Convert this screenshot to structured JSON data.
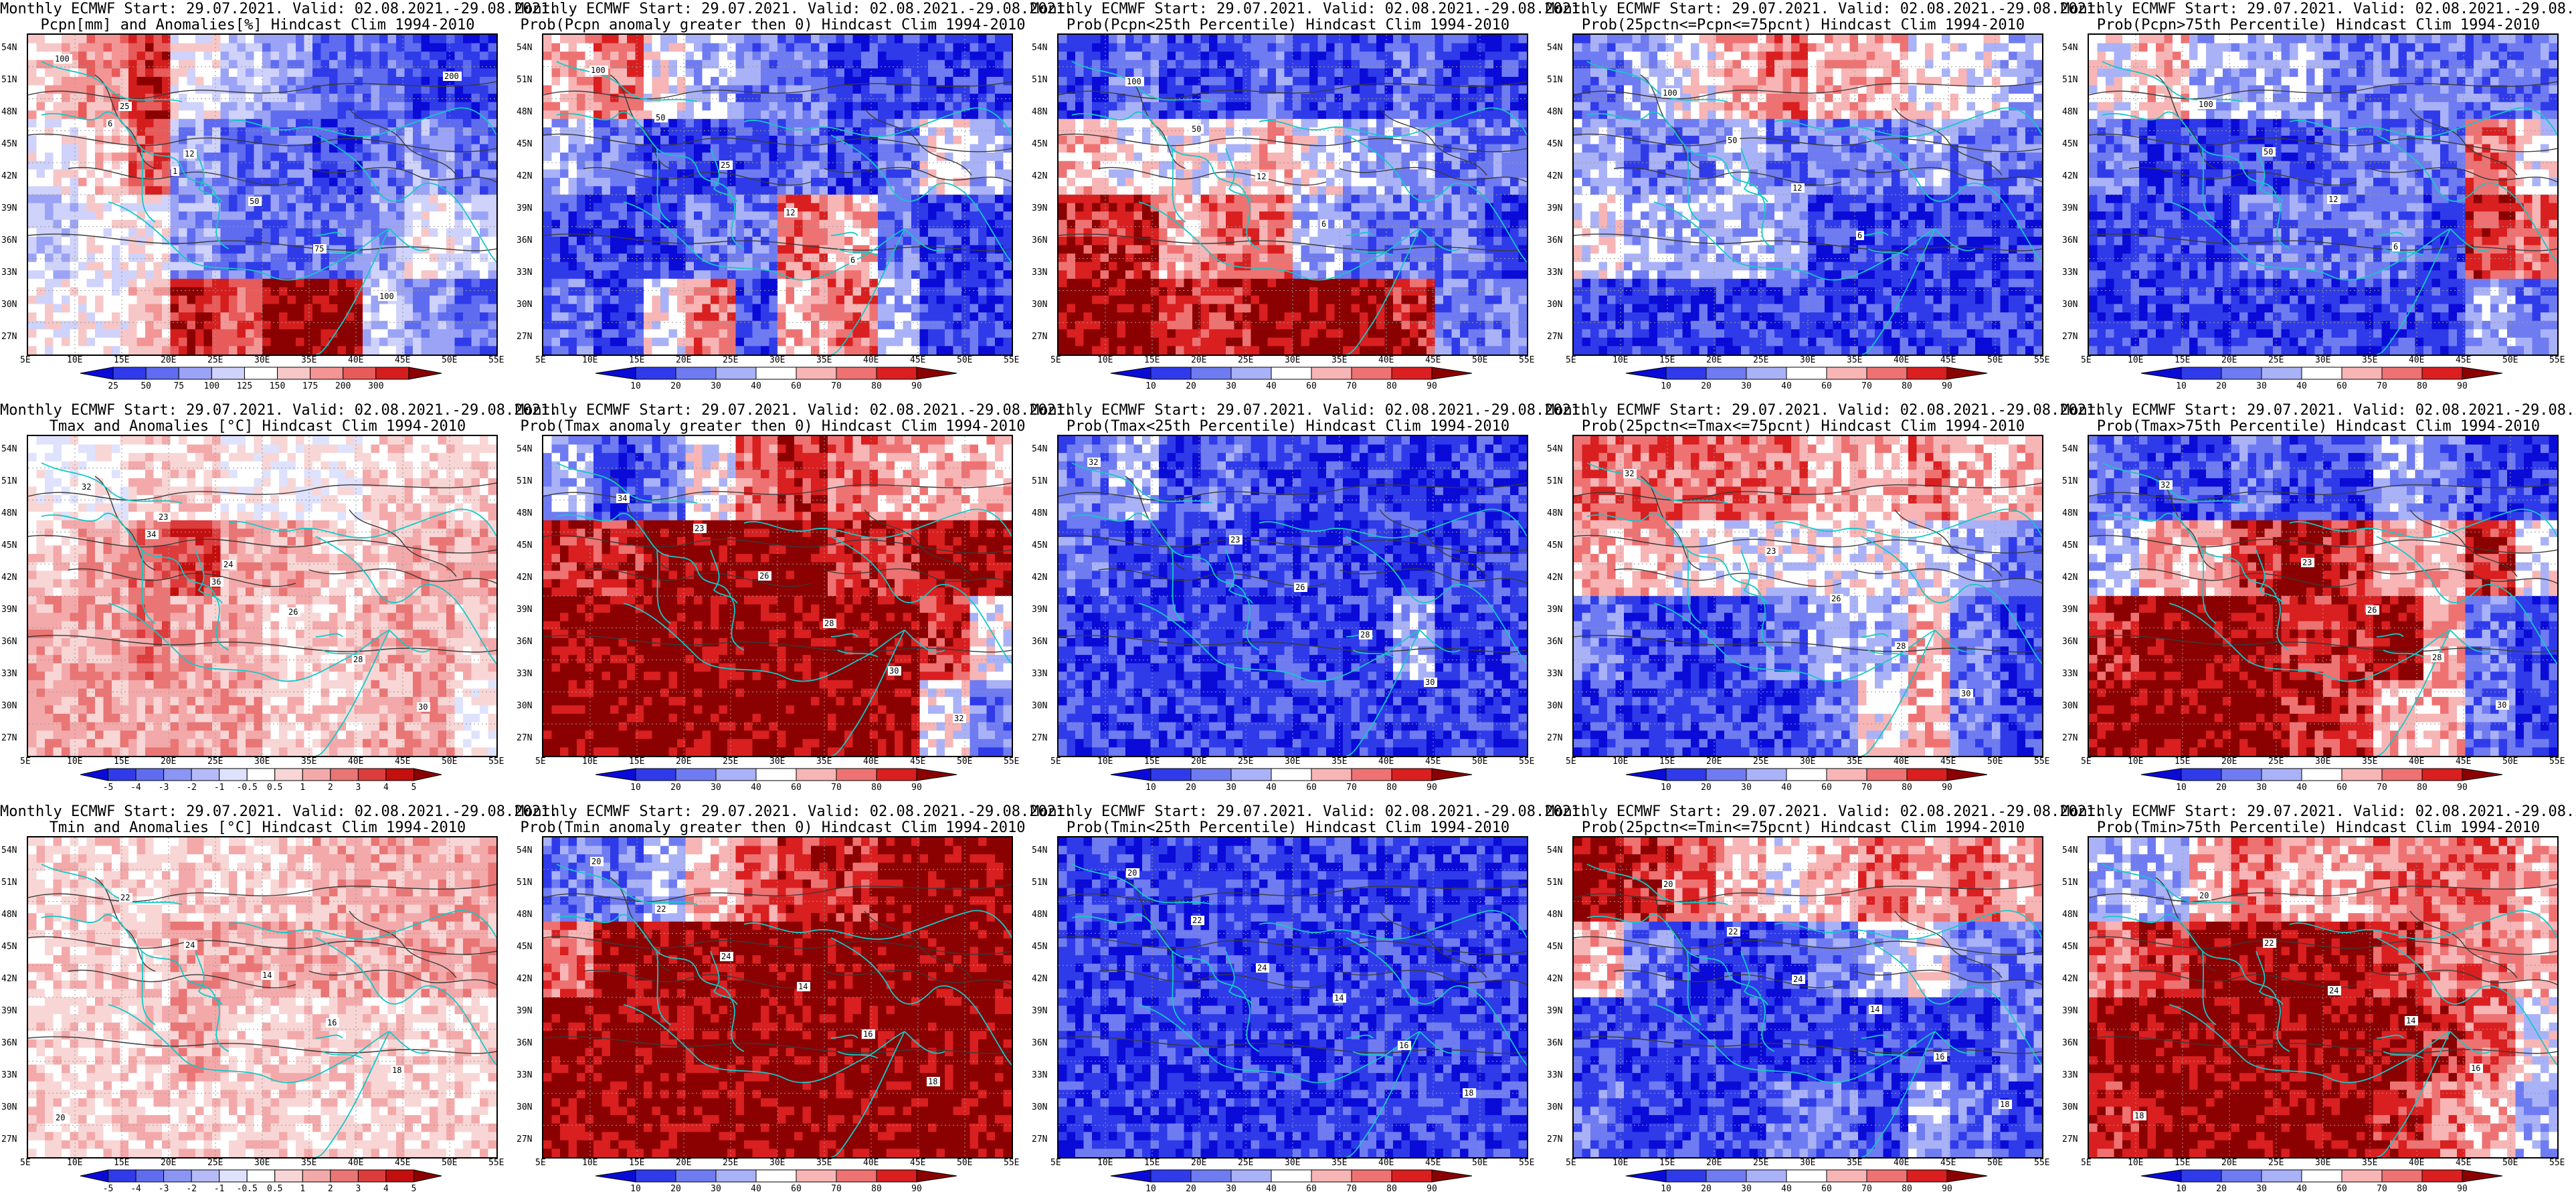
{
  "rows": [
    {
      "title1": "Monthly ECMWF Start: 29.07.2021. Valid: 02.08.2021.-29.08.2021.",
      "variable": "Pcpn",
      "panels": [
        {
          "title2": "Pcpn[mm] and Anomalies[%] Hindcast Clim 1994-2010",
          "colorbar": {
            "ticks": [
              "25",
              "50",
              "75",
              "100",
              "125",
              "150",
              "175",
              "200",
              "300"
            ],
            "colors": [
              "#0b0bd8",
              "#2f3be8",
              "#5f6cf0",
              "#9aa3f6",
              "#cfd3fb",
              "#ffffff",
              "#f7c7c7",
              "#f39595",
              "#e85b5b",
              "#d41d1d",
              "#8b0000"
            ]
          },
          "contour_labels": [
            "100",
            "25",
            "12",
            "50",
            "75",
            "100",
            "200",
            "6",
            "1"
          ]
        },
        {
          "title2": "Prob(Pcpn anomaly greater then 0) Hindcast Clim 1994-2010",
          "colorbar": {
            "ticks": [
              "10",
              "20",
              "30",
              "40",
              "60",
              "70",
              "80",
              "90"
            ],
            "colors": [
              "#0b0bd8",
              "#2f3be8",
              "#6f7bf0",
              "#aab2f7",
              "#ffffff",
              "#f7b5b5",
              "#ef7272",
              "#d91f1f",
              "#8b0000"
            ]
          },
          "contour_labels": [
            "100",
            "50",
            "25",
            "12",
            "6"
          ]
        },
        {
          "title2": "Prob(Pcpn<25th Percentile) Hindcast Clim 1994-2010",
          "colorbar": {
            "ticks": [
              "10",
              "20",
              "30",
              "40",
              "60",
              "70",
              "80",
              "90"
            ],
            "colors": [
              "#0b0bd8",
              "#2f3be8",
              "#6f7bf0",
              "#aab2f7",
              "#ffffff",
              "#f7b5b5",
              "#ef7272",
              "#d91f1f",
              "#8b0000"
            ]
          },
          "contour_labels": [
            "100",
            "50",
            "12",
            "6"
          ]
        },
        {
          "title2": "Prob(25pctn<=Pcpn<=75pcnt) Hindcast Clim 1994-2010",
          "colorbar": {
            "ticks": [
              "10",
              "20",
              "30",
              "40",
              "60",
              "70",
              "80",
              "90"
            ],
            "colors": [
              "#0b0bd8",
              "#2f3be8",
              "#6f7bf0",
              "#aab2f7",
              "#ffffff",
              "#f7b5b5",
              "#ef7272",
              "#d91f1f",
              "#8b0000"
            ]
          },
          "contour_labels": [
            "100",
            "50",
            "12",
            "6"
          ]
        },
        {
          "title2": "Prob(Pcpn>75th Percentile) Hindcast Clim 1994-2010",
          "colorbar": {
            "ticks": [
              "10",
              "20",
              "30",
              "40",
              "60",
              "70",
              "80",
              "90"
            ],
            "colors": [
              "#0b0bd8",
              "#2f3be8",
              "#6f7bf0",
              "#aab2f7",
              "#ffffff",
              "#f7b5b5",
              "#ef7272",
              "#d91f1f",
              "#8b0000"
            ]
          },
          "contour_labels": [
            "100",
            "50",
            "12",
            "6"
          ]
        }
      ]
    },
    {
      "title1": "Monthly ECMWF Start: 29.07.2021. Valid: 02.08.2021.-29.08.2021.",
      "variable": "Tmax",
      "panels": [
        {
          "title2": "Tmax and Anomalies [°C] Hindcast Clim 1994-2010",
          "colorbar": {
            "ticks": [
              "-5",
              "-4",
              "-3",
              "-2",
              "-1",
              "-0.5",
              "0.5",
              "1",
              "2",
              "3",
              "4",
              "5"
            ],
            "colors": [
              "#0b0bd8",
              "#2f3be8",
              "#5f6cf0",
              "#8a95f4",
              "#b4bbf8",
              "#dfe2fc",
              "#ffffff",
              "#f9d6d6",
              "#f3a9a9",
              "#ea7575",
              "#dc3c3c",
              "#c40f0f",
              "#8b0000"
            ]
          },
          "contour_labels": [
            "23",
            "24",
            "26",
            "28",
            "30",
            "32",
            "34",
            "36"
          ]
        },
        {
          "title2": "Prob(Tmax anomaly greater then 0) Hindcast Clim 1994-2010",
          "colorbar": {
            "ticks": [
              "10",
              "20",
              "30",
              "40",
              "60",
              "70",
              "80",
              "90"
            ],
            "colors": [
              "#0b0bd8",
              "#2f3be8",
              "#6f7bf0",
              "#aab2f7",
              "#ffffff",
              "#f7b5b5",
              "#ef7272",
              "#d91f1f",
              "#8b0000"
            ]
          },
          "contour_labels": [
            "23",
            "26",
            "28",
            "30",
            "32",
            "34"
          ]
        },
        {
          "title2": "Prob(Tmax<25th Percentile) Hindcast Clim 1994-2010",
          "colorbar": {
            "ticks": [
              "10",
              "20",
              "30",
              "40",
              "60",
              "70",
              "80",
              "90"
            ],
            "colors": [
              "#0b0bd8",
              "#2f3be8",
              "#6f7bf0",
              "#aab2f7",
              "#ffffff",
              "#f7b5b5",
              "#ef7272",
              "#d91f1f",
              "#8b0000"
            ]
          },
          "contour_labels": [
            "23",
            "26",
            "28",
            "30",
            "32"
          ]
        },
        {
          "title2": "Prob(25pctn<=Tmax<=75pcnt) Hindcast Clim 1994-2010",
          "colorbar": {
            "ticks": [
              "10",
              "20",
              "30",
              "40",
              "60",
              "70",
              "80",
              "90"
            ],
            "colors": [
              "#0b0bd8",
              "#2f3be8",
              "#6f7bf0",
              "#aab2f7",
              "#ffffff",
              "#f7b5b5",
              "#ef7272",
              "#d91f1f",
              "#8b0000"
            ]
          },
          "contour_labels": [
            "23",
            "26",
            "28",
            "30",
            "32"
          ]
        },
        {
          "title2": "Prob(Tmax>75th Percentile) Hindcast Clim 1994-2010",
          "colorbar": {
            "ticks": [
              "10",
              "20",
              "30",
              "40",
              "60",
              "70",
              "80",
              "90"
            ],
            "colors": [
              "#0b0bd8",
              "#2f3be8",
              "#6f7bf0",
              "#aab2f7",
              "#ffffff",
              "#f7b5b5",
              "#ef7272",
              "#d91f1f",
              "#8b0000"
            ]
          },
          "contour_labels": [
            "23",
            "26",
            "28",
            "30",
            "32"
          ]
        }
      ]
    },
    {
      "title1": "Monthly ECMWF Start: 29.07.2021. Valid: 02.08.2021.-29.08.2021.",
      "variable": "Tmin",
      "panels": [
        {
          "title2": "Tmin and Anomalies [°C] Hindcast Clim 1994-2010",
          "colorbar": {
            "ticks": [
              "-5",
              "-4",
              "-3",
              "-2",
              "-1",
              "-0.5",
              "0.5",
              "1",
              "2",
              "3",
              "4",
              "5"
            ],
            "colors": [
              "#0b0bd8",
              "#2f3be8",
              "#5f6cf0",
              "#8a95f4",
              "#b4bbf8",
              "#dfe2fc",
              "#ffffff",
              "#f9d6d6",
              "#f3a9a9",
              "#ea7575",
              "#dc3c3c",
              "#c40f0f",
              "#8b0000"
            ]
          },
          "contour_labels": [
            "14",
            "16",
            "18",
            "20",
            "22",
            "24"
          ]
        },
        {
          "title2": "Prob(Tmin anomaly greater then 0) Hindcast Clim 1994-2010",
          "colorbar": {
            "ticks": [
              "10",
              "20",
              "30",
              "40",
              "60",
              "70",
              "80",
              "90"
            ],
            "colors": [
              "#0b0bd8",
              "#2f3be8",
              "#6f7bf0",
              "#aab2f7",
              "#ffffff",
              "#f7b5b5",
              "#ef7272",
              "#d91f1f",
              "#8b0000"
            ]
          },
          "contour_labels": [
            "14",
            "16",
            "18",
            "20",
            "22",
            "24"
          ]
        },
        {
          "title2": "Prob(Tmin<25th Percentile) Hindcast Clim 1994-2010",
          "colorbar": {
            "ticks": [
              "10",
              "20",
              "30",
              "40",
              "60",
              "70",
              "80",
              "90"
            ],
            "colors": [
              "#0b0bd8",
              "#2f3be8",
              "#6f7bf0",
              "#aab2f7",
              "#ffffff",
              "#f7b5b5",
              "#ef7272",
              "#d91f1f",
              "#8b0000"
            ]
          },
          "contour_labels": [
            "14",
            "16",
            "18",
            "20",
            "22",
            "24"
          ]
        },
        {
          "title2": "Prob(25pctn<=Tmin<=75pcnt) Hindcast Clim 1994-2010",
          "colorbar": {
            "ticks": [
              "10",
              "20",
              "30",
              "40",
              "60",
              "70",
              "80",
              "90"
            ],
            "colors": [
              "#0b0bd8",
              "#2f3be8",
              "#6f7bf0",
              "#aab2f7",
              "#ffffff",
              "#f7b5b5",
              "#ef7272",
              "#d91f1f",
              "#8b0000"
            ]
          },
          "contour_labels": [
            "14",
            "16",
            "18",
            "20",
            "22",
            "24"
          ]
        },
        {
          "title2": "Prob(Tmin>75th Percentile) Hindcast Clim 1994-2010",
          "colorbar": {
            "ticks": [
              "10",
              "20",
              "30",
              "40",
              "60",
              "70",
              "80",
              "90"
            ],
            "colors": [
              "#0b0bd8",
              "#2f3be8",
              "#6f7bf0",
              "#aab2f7",
              "#ffffff",
              "#f7b5b5",
              "#ef7272",
              "#d91f1f",
              "#8b0000"
            ]
          },
          "contour_labels": [
            "14",
            "16",
            "18",
            "20",
            "22",
            "24"
          ]
        }
      ]
    }
  ],
  "lat_labels": [
    "54N",
    "51N",
    "48N",
    "45N",
    "42N",
    "39N",
    "36N",
    "33N",
    "30N",
    "27N"
  ],
  "lon_labels": [
    "5E",
    "10E",
    "15E",
    "20E",
    "25E",
    "30E",
    "35E",
    "40E",
    "45E",
    "50E",
    "55E"
  ],
  "map_colors": {
    "coast": "#14c8c8",
    "contour": "#3a3a3a",
    "grid": "#9a9a9a"
  }
}
